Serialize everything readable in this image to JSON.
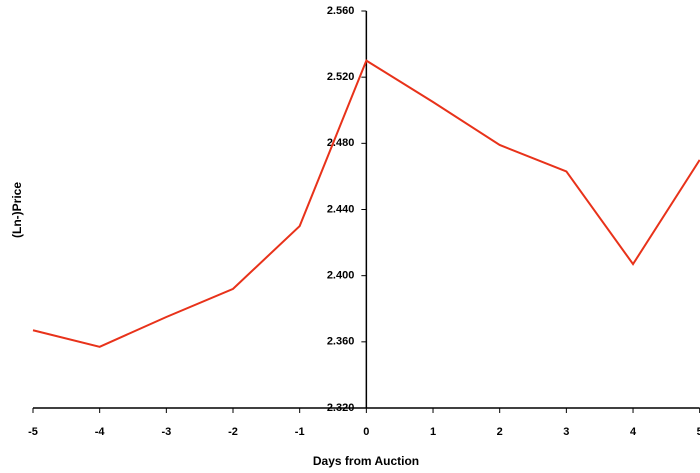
{
  "chart_data": {
    "type": "line",
    "x_label": "Days from Auction",
    "y_label": "(Ln-)Price",
    "x": [
      -5,
      -4,
      -3,
      -2,
      -1,
      0,
      1,
      2,
      3,
      4,
      5
    ],
    "series": [
      {
        "name": "Price",
        "color": "#e8321a",
        "values": [
          2.367,
          2.357,
          2.375,
          2.392,
          2.43,
          2.53,
          2.505,
          2.479,
          2.463,
          2.407,
          2.47
        ]
      }
    ],
    "xlim": [
      -5,
      5
    ],
    "xticks": [
      -5,
      -4,
      -3,
      -2,
      -1,
      0,
      1,
      2,
      3,
      4,
      5
    ],
    "ylim": [
      2.32,
      2.56
    ],
    "yticks": [
      {
        "value": 2.32,
        "label": "2.320"
      },
      {
        "value": 2.36,
        "label": "2.360"
      },
      {
        "value": 2.4,
        "label": "2.400"
      },
      {
        "value": 2.44,
        "label": "2.440"
      },
      {
        "value": 2.48,
        "label": "2.480"
      },
      {
        "value": 2.52,
        "label": "2.520"
      },
      {
        "value": 2.56,
        "label": "2.560"
      }
    ],
    "grid": false
  }
}
